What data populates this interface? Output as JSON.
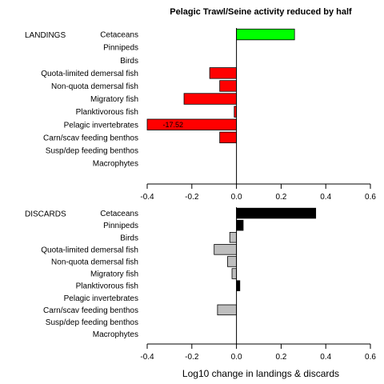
{
  "chart_data": {
    "type": "bar",
    "orientation": "horizontal",
    "title": "Pelagic Trawl/Seine activity reduced by half",
    "xlabel": "Log10 change in landings & discards",
    "xlim": [
      -0.4,
      0.6
    ],
    "xticks": [
      "-0.4",
      "-0.2",
      "0.0",
      "0.2",
      "0.4",
      "0.6"
    ],
    "colors": {
      "landings_positive": "#00ff00",
      "landings_negative": "#ff0000",
      "discards_positive": "#000000",
      "discards_negative": "#bebebe"
    },
    "panels": [
      {
        "label": "LANDINGS",
        "categories": [
          "Cetaceans",
          "Pinnipeds",
          "Birds",
          "Quota-limited demersal fish",
          "Non-quota demersal fish",
          "Migratory fish",
          "Planktivorous fish",
          "Pelagic invertebrates",
          "Carn/scav feeding benthos",
          "Susp/dep feeding benthos",
          "Macrophytes"
        ],
        "values": [
          0.26,
          0,
          0,
          -0.12,
          -0.075,
          -0.235,
          -0.01,
          -0.4,
          -0.075,
          0,
          0
        ],
        "annotations": [
          {
            "category": "Pelagic invertebrates",
            "text": "-17.52"
          }
        ]
      },
      {
        "label": "DISCARDS",
        "categories": [
          "Cetaceans",
          "Pinnipeds",
          "Birds",
          "Quota-limited demersal fish",
          "Non-quota demersal fish",
          "Migratory fish",
          "Planktivorous fish",
          "Pelagic invertebrates",
          "Carn/scav feeding benthos",
          "Susp/dep feeding benthos",
          "Macrophytes"
        ],
        "values": [
          0.355,
          0.03,
          -0.03,
          -0.1,
          -0.04,
          -0.02,
          0.015,
          0,
          -0.085,
          0,
          0
        ],
        "annotations": []
      }
    ]
  }
}
